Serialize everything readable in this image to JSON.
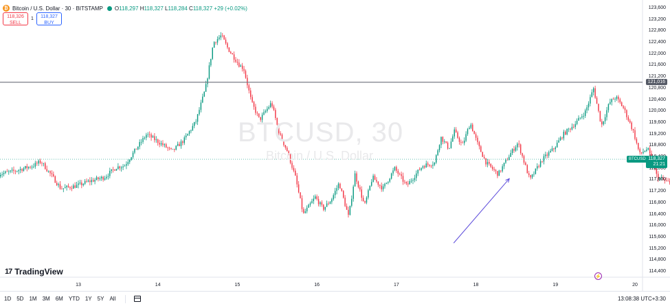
{
  "legend": {
    "coin_glyph": "₿",
    "title": "Bitcoin / U.S. Dollar · 30 · BITSTAMP",
    "o_label": "O",
    "o_value": "118,297",
    "h_label": "H",
    "h_value": "118,327",
    "l_label": "L",
    "l_value": "118,284",
    "c_label": "C",
    "c_value": "118,327",
    "change": "+29 (+0.02%)"
  },
  "trade": {
    "sell_price": "118,326",
    "sell_label": "SELL",
    "spread": "1",
    "buy_price": "118,327",
    "buy_label": "BUY"
  },
  "watermark": {
    "symbol": "BTCUSD, 30",
    "name": "Bitcoin / U.S. Dollar"
  },
  "logo": {
    "text": "TradingView"
  },
  "horizontal_line_label": "121,016",
  "price_tag": {
    "symbol": "BTCUSD",
    "price": "118,327",
    "countdown": "21:21"
  },
  "bottom_bar": {
    "timeframes": [
      "1D",
      "5D",
      "1M",
      "3M",
      "6M",
      "YTD",
      "1Y",
      "5Y",
      "All"
    ],
    "time": "13:08:38 UTC+3:30"
  },
  "colors": {
    "up": "#089981",
    "down": "#f23645",
    "hline": "#787b86",
    "trend": "#5c4bdb"
  },
  "chart_data": {
    "type": "candlestick",
    "title": "Bitcoin / U.S. Dollar · 30 · BITSTAMP",
    "ylim": [
      114200,
      123600
    ],
    "y_ticks": [
      114400,
      114800,
      115200,
      115600,
      116000,
      116400,
      116800,
      117200,
      117600,
      118000,
      118400,
      118800,
      119200,
      119600,
      120000,
      120400,
      120800,
      121200,
      121600,
      122000,
      122400,
      122800,
      123200,
      123600
    ],
    "y_tick_labels": [
      "114,400",
      "114,800",
      "115,200",
      "115,600",
      "116,000",
      "116,400",
      "116,800",
      "117,200",
      "117,600",
      "118,000",
      "118,400",
      "118,800",
      "119,200",
      "119,600",
      "120,000",
      "120,400",
      "120,800",
      "121,200",
      "121,600",
      "122,000",
      "122,400",
      "122,800",
      "123,200",
      "123,600"
    ],
    "x_tick_labels": [
      "13",
      "14",
      "15",
      "16",
      "17",
      "18",
      "19",
      "20"
    ],
    "x_tick_days": [
      13,
      14,
      15,
      16,
      17,
      18,
      19,
      20
    ],
    "day_start": 12.0,
    "day_end": 20.0,
    "candles_per_day": 48,
    "horizontal_line": 121016,
    "last_price": 118327,
    "trend_line": {
      "from": [
        17.72,
        115400
      ],
      "to": [
        18.42,
        117650
      ]
    },
    "anchors": [
      [
        12.0,
        117800
      ],
      [
        12.2,
        117900
      ],
      [
        12.45,
        118100
      ],
      [
        12.55,
        118250
      ],
      [
        12.7,
        117700
      ],
      [
        12.8,
        117300
      ],
      [
        13.0,
        117400
      ],
      [
        13.15,
        117550
      ],
      [
        13.35,
        117700
      ],
      [
        13.5,
        118050
      ],
      [
        13.6,
        118100
      ],
      [
        13.75,
        118700
      ],
      [
        13.88,
        119200
      ],
      [
        14.1,
        118800
      ],
      [
        14.2,
        118600
      ],
      [
        14.35,
        119000
      ],
      [
        14.5,
        119650
      ],
      [
        14.62,
        120800
      ],
      [
        14.72,
        122400
      ],
      [
        14.82,
        122650
      ],
      [
        14.9,
        122200
      ],
      [
        15.05,
        121600
      ],
      [
        15.1,
        121500
      ],
      [
        15.2,
        120300
      ],
      [
        15.3,
        119700
      ],
      [
        15.45,
        120300
      ],
      [
        15.55,
        119200
      ],
      [
        15.65,
        118600
      ],
      [
        15.75,
        117700
      ],
      [
        15.85,
        116400
      ],
      [
        16.0,
        117000
      ],
      [
        16.1,
        116600
      ],
      [
        16.2,
        116900
      ],
      [
        16.3,
        117500
      ],
      [
        16.42,
        116300
      ],
      [
        16.5,
        117800
      ],
      [
        16.62,
        116700
      ],
      [
        16.72,
        117700
      ],
      [
        16.85,
        117300
      ],
      [
        17.0,
        118000
      ],
      [
        17.15,
        117400
      ],
      [
        17.35,
        118100
      ],
      [
        17.5,
        118200
      ],
      [
        17.58,
        119100
      ],
      [
        17.68,
        118700
      ],
      [
        17.75,
        119300
      ],
      [
        17.85,
        118800
      ],
      [
        17.95,
        119600
      ],
      [
        18.05,
        118800
      ],
      [
        18.15,
        118200
      ],
      [
        18.3,
        117800
      ],
      [
        18.45,
        118500
      ],
      [
        18.55,
        118900
      ],
      [
        18.7,
        117600
      ],
      [
        18.85,
        118300
      ],
      [
        19.0,
        118700
      ],
      [
        19.12,
        119200
      ],
      [
        19.28,
        119600
      ],
      [
        19.4,
        120000
      ],
      [
        19.5,
        120800
      ],
      [
        19.6,
        119500
      ],
      [
        19.7,
        120300
      ],
      [
        19.78,
        120500
      ],
      [
        19.88,
        120100
      ],
      [
        20.0,
        119300
      ],
      [
        20.08,
        118500
      ],
      [
        20.18,
        118700
      ],
      [
        20.3,
        117700
      ],
      [
        20.45,
        117500
      ],
      [
        20.6,
        117300
      ],
      [
        20.72,
        117700
      ],
      [
        20.9,
        118200
      ],
      [
        21.0,
        118400
      ],
      [
        21.1,
        118200
      ],
      [
        21.2,
        118327
      ]
    ]
  }
}
